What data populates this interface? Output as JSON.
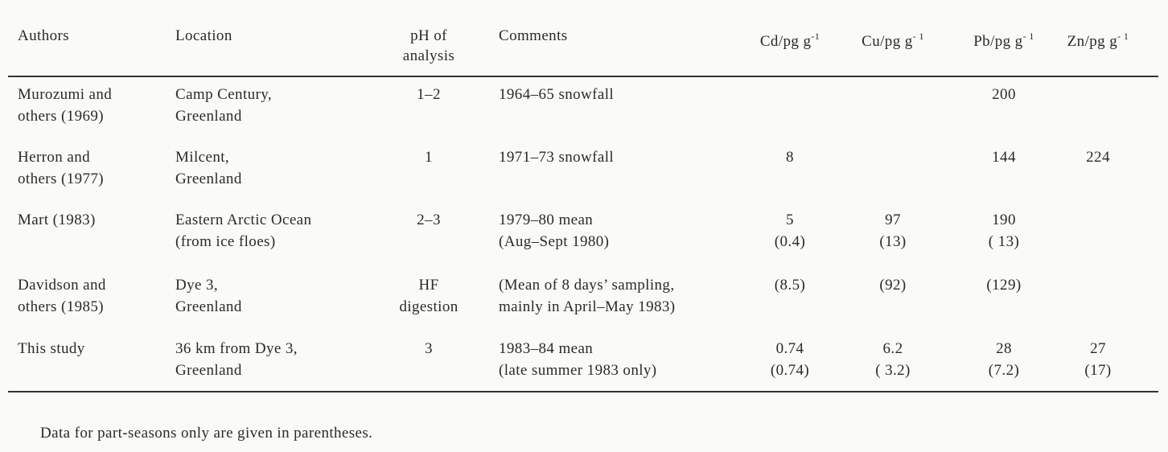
{
  "table": {
    "header": [
      [
        "Authors"
      ],
      [
        "Location"
      ],
      [
        "pH of",
        "analysis"
      ],
      [
        "Comments"
      ],
      {
        "base": "Cd/pg g",
        "sup": "-1"
      },
      {
        "base": "Cu/pg g",
        "sup": "- 1"
      },
      {
        "base": "Pb/pg g",
        "sup": "- 1"
      },
      {
        "base": "Zn/pg g",
        "sup": "- 1"
      }
    ],
    "rows": [
      [
        [
          "Murozumi and",
          "others (1969)"
        ],
        [
          "Camp Century,",
          "Greenland"
        ],
        [
          "1–2"
        ],
        [
          "1964–65 snowfall"
        ],
        [],
        [],
        [
          "200"
        ],
        []
      ],
      [
        [
          "Herron and",
          "others (1977)"
        ],
        [
          "Milcent,",
          "Greenland"
        ],
        [
          "1"
        ],
        [
          "1971–73 snowfall"
        ],
        [
          "8"
        ],
        [],
        [
          "144"
        ],
        [
          "224"
        ]
      ],
      [
        [
          "Mart (1983)"
        ],
        [
          "Eastern Arctic Ocean",
          "(from ice floes)"
        ],
        [
          "2–3"
        ],
        [
          "1979–80 mean",
          "(Aug–Sept 1980)"
        ],
        [
          "5",
          "(0.4)"
        ],
        [
          "97",
          "(13)"
        ],
        [
          "190",
          "( 13)"
        ],
        []
      ],
      [
        [
          "Davidson and",
          "others (1985)"
        ],
        [
          "Dye 3,",
          "Greenland"
        ],
        [
          "HF",
          "digestion"
        ],
        [
          "(Mean of 8 days’ sampling,",
          "mainly in April–May 1983)"
        ],
        [
          "(8.5)"
        ],
        [
          "(92)"
        ],
        [
          "(129)"
        ],
        []
      ],
      [
        [
          "This study"
        ],
        [
          "36 km from Dye 3,",
          "Greenland"
        ],
        [
          "3"
        ],
        [
          "1983–84 mean",
          "(late summer 1983 only)"
        ],
        [
          "0.74",
          "(0.74)"
        ],
        [
          "6.2",
          "( 3.2)"
        ],
        [
          "28",
          "(7.2)"
        ],
        [
          "27",
          "(17)"
        ]
      ]
    ],
    "footnote": "Data for part-seasons only are given in parentheses."
  }
}
